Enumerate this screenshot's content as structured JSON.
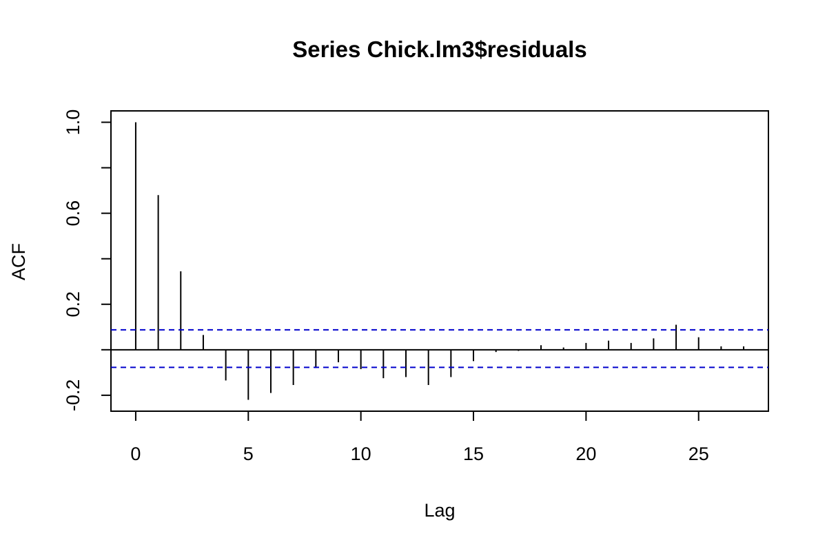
{
  "chart_data": {
    "type": "bar",
    "title": "Series  Chick.lm3$residuals",
    "xlabel": "Lag",
    "ylabel": "ACF",
    "x": [
      0,
      1,
      2,
      3,
      4,
      5,
      6,
      7,
      8,
      9,
      10,
      11,
      12,
      13,
      14,
      15,
      16,
      17,
      18,
      19,
      20,
      21,
      22,
      23,
      24,
      25,
      26,
      27
    ],
    "values": [
      1.0,
      0.68,
      0.345,
      0.065,
      -0.135,
      -0.22,
      -0.19,
      -0.155,
      -0.08,
      -0.055,
      -0.085,
      -0.125,
      -0.12,
      -0.155,
      -0.12,
      -0.05,
      -0.01,
      -0.005,
      0.02,
      0.01,
      0.03,
      0.04,
      0.03,
      0.05,
      0.11,
      0.055,
      0.015,
      0.015
    ],
    "confidence_bounds": [
      0.0875,
      -0.0775
    ],
    "confidence_color": "#0000CC",
    "xlim": [
      -1.1,
      28.1
    ],
    "ylim": [
      -0.27,
      1.05
    ],
    "xticks": [
      0,
      5,
      10,
      15,
      20,
      25
    ],
    "xtick_labels": [
      "0",
      "5",
      "10",
      "15",
      "20",
      "25"
    ],
    "yticks": [
      -0.2,
      0.0,
      0.2,
      0.4,
      0.6,
      0.8,
      1.0
    ],
    "ytick_labels": [
      "-0.2",
      "0.2",
      "0.6",
      "1.0"
    ],
    "ytick_labeled": [
      -0.2,
      0.2,
      0.6,
      1.0
    ],
    "grid": false
  }
}
